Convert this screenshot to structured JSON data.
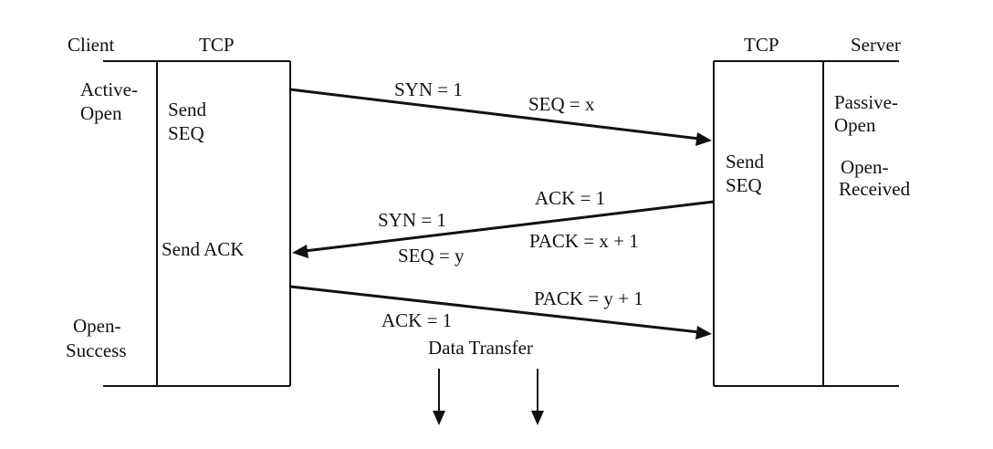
{
  "headers": {
    "client": "Client",
    "tcp_left": "TCP",
    "tcp_right": "TCP",
    "server": "Server"
  },
  "client_states": {
    "active_open": [
      "Active-",
      "Open"
    ],
    "open_success": [
      "Open-",
      "Success"
    ]
  },
  "server_states": {
    "passive_open": [
      "Passive-",
      "Open"
    ],
    "open_received": [
      "Open-",
      "Received"
    ]
  },
  "tcp_actions": {
    "left_send_seq": [
      "Send",
      "SEQ"
    ],
    "left_send_ack": "Send ACK",
    "right_send_seq": [
      "Send",
      "SEQ"
    ]
  },
  "messages": {
    "msg1": {
      "syn": "SYN = 1",
      "seq": "SEQ = x"
    },
    "msg2": {
      "ack": "ACK = 1",
      "syn": "SYN = 1",
      "pack": "PACK = x + 1",
      "seq": "SEQ = y"
    },
    "msg3": {
      "pack": "PACK = y + 1",
      "ack": "ACK = 1"
    }
  },
  "data_transfer": "Data Transfer"
}
